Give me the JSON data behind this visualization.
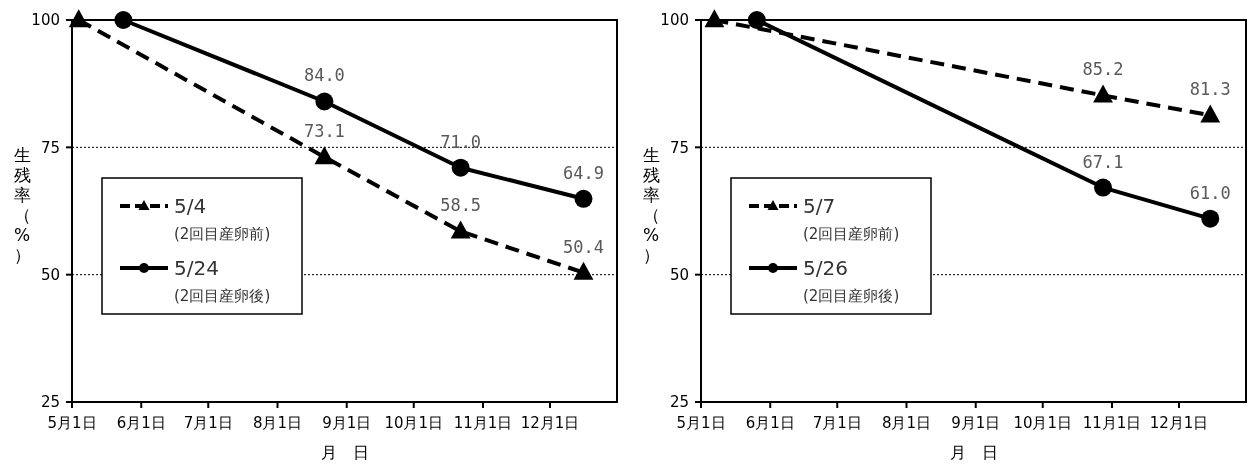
{
  "chart_data": [
    {
      "type": "line",
      "xlabel": "月　日",
      "ylabel": "生残率（%）",
      "x": [
        "--05-04",
        "--08-22",
        "--10-22",
        "--12-16"
      ],
      "xlim": [
        "--05-01",
        "--12-31"
      ],
      "xticks": [
        {
          "value": "--05-01",
          "label": "5月1日"
        },
        {
          "value": "--06-01",
          "label": "6月1日"
        },
        {
          "value": "--07-01",
          "label": "7月1日"
        },
        {
          "value": "--08-01",
          "label": "8月1日"
        },
        {
          "value": "--09-01",
          "label": "9月1日"
        },
        {
          "value": "--10-01",
          "label": "10月1日"
        },
        {
          "value": "--11-01",
          "label": "11月1日"
        },
        {
          "value": "--12-01",
          "label": "12月1日"
        }
      ],
      "ylim": [
        25,
        100
      ],
      "yticks": [
        25,
        50,
        75,
        100
      ],
      "grid": "y",
      "legend": "left",
      "series": [
        {
          "name": "5/4 (2回目産卵前)",
          "color": "#000000",
          "marker": "triangle",
          "line_style": "dashed",
          "values": [
            100,
            73.1,
            58.5,
            50.4
          ],
          "value_labels": [
            null,
            "73.1",
            "58.5",
            "50.4"
          ]
        },
        {
          "name": "5/24 (2回目産卵後)",
          "color": "#000000",
          "marker": "circle",
          "line_style": "solid",
          "x": [
            "--05-24",
            "--08-22",
            "--10-22",
            "--12-16"
          ],
          "values": [
            100,
            84.0,
            71.0,
            64.9
          ],
          "value_labels": [
            null,
            "84.0",
            "71.0",
            "64.9"
          ]
        }
      ]
    },
    {
      "type": "line",
      "xlabel": "月　日",
      "ylabel": "生残率（%）",
      "x": [
        "--05-07",
        "--10-28",
        "--12-15"
      ],
      "xlim": [
        "--05-01",
        "--12-31"
      ],
      "xticks": [
        {
          "value": "--05-01",
          "label": "5月1日"
        },
        {
          "value": "--06-01",
          "label": "6月1日"
        },
        {
          "value": "--07-01",
          "label": "7月1日"
        },
        {
          "value": "--08-01",
          "label": "8月1日"
        },
        {
          "value": "--09-01",
          "label": "9月1日"
        },
        {
          "value": "--10-01",
          "label": "10月1日"
        },
        {
          "value": "--11-01",
          "label": "11月1日"
        },
        {
          "value": "--12-01",
          "label": "12月1日"
        }
      ],
      "ylim": [
        25,
        100
      ],
      "yticks": [
        25,
        50,
        75,
        100
      ],
      "grid": "y",
      "legend": "left",
      "series": [
        {
          "name": "5/7 (2回目産卵前)",
          "color": "#000000",
          "marker": "triangle",
          "line_style": "dashed",
          "values": [
            100,
            85.2,
            81.3
          ],
          "value_labels": [
            null,
            "85.2",
            "81.3"
          ]
        },
        {
          "name": "5/26 (2回目産卵後)",
          "color": "#000000",
          "marker": "circle",
          "line_style": "solid",
          "x": [
            "--05-26",
            "--10-28",
            "--12-15"
          ],
          "values": [
            100,
            67.1,
            61.0
          ],
          "value_labels": [
            null,
            "67.1",
            "61.0"
          ]
        }
      ]
    }
  ]
}
